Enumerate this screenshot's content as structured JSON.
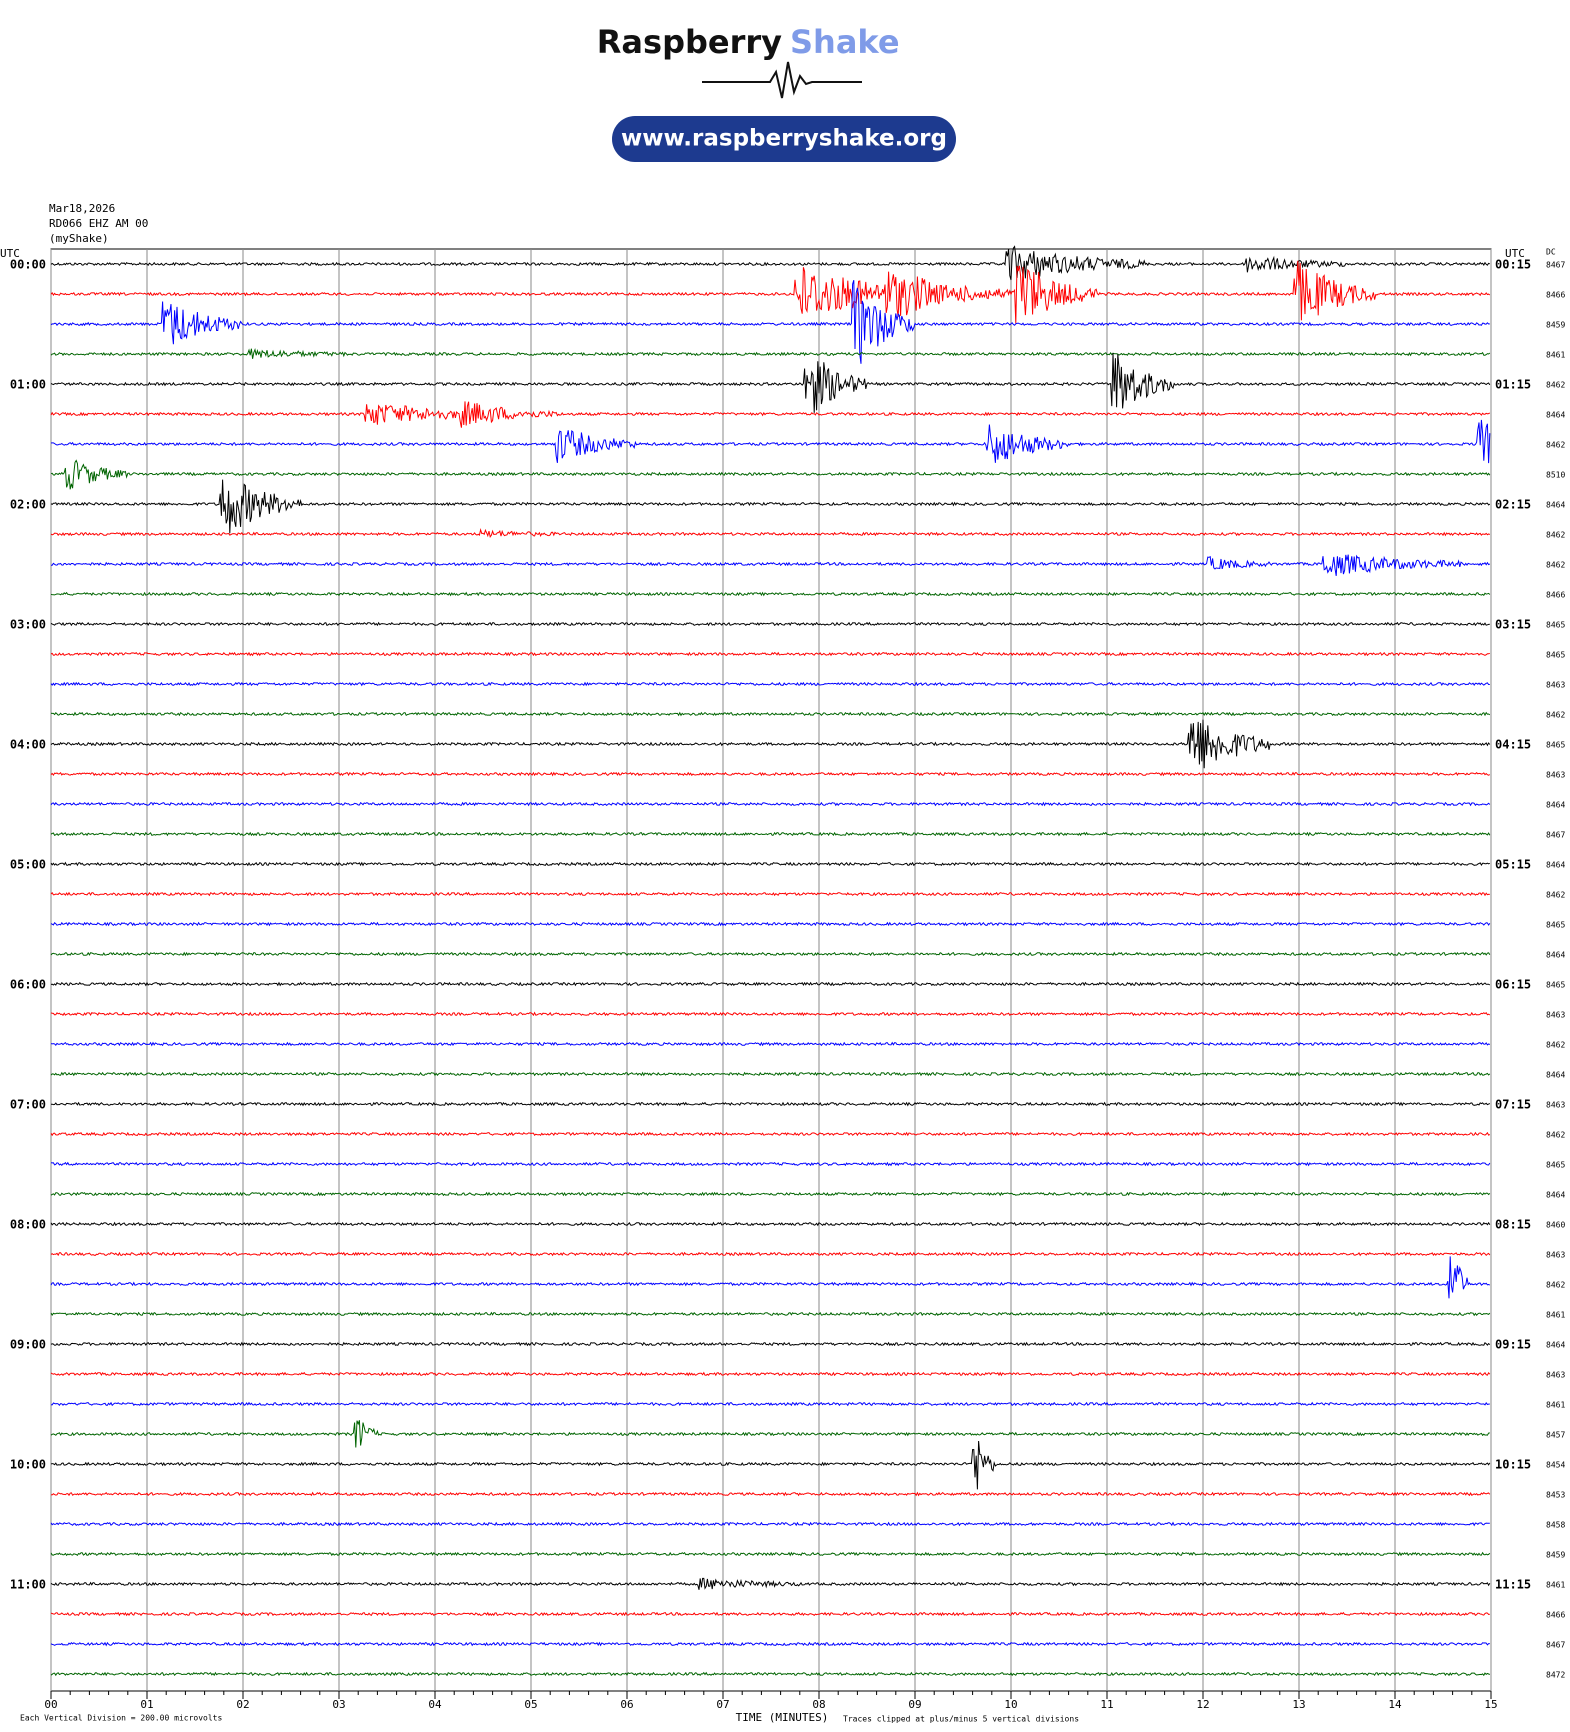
{
  "header": {
    "brand_left": "Raspberry",
    "brand_right": "Shake",
    "url": "www.raspberryshake.org"
  },
  "info": [
    "Mar18,2026",
    "RD066 EHZ AM 00",
    "(myShake)"
  ],
  "plot": {
    "left_zone": "UTC",
    "right_zone": "UTC",
    "dc_label": "DC",
    "left_labels": [
      "00:00",
      "01:00",
      "02:00",
      "03:00",
      "04:00",
      "05:00",
      "06:00",
      "07:00",
      "08:00",
      "09:00",
      "10:00",
      "11:00"
    ],
    "right_labels": [
      "00:15",
      "01:15",
      "02:15",
      "03:15",
      "04:15",
      "05:15",
      "06:15",
      "07:15",
      "08:15",
      "09:15",
      "10:15",
      "11:15"
    ],
    "dc_values": [
      8467,
      8466,
      8459,
      8461,
      8462,
      8464,
      8462,
      8510,
      8464,
      8462,
      8462,
      8466,
      8465,
      8465,
      8463,
      8462,
      8465,
      8463,
      8464,
      8467,
      8464,
      8462,
      8465,
      8464,
      8465,
      8463,
      8462,
      8464,
      8463,
      8462,
      8465,
      8464,
      8460,
      8463,
      8462,
      8461,
      8464,
      8463,
      8461,
      8457,
      8454,
      8453,
      8458,
      8459,
      8461,
      8466,
      8467,
      8472
    ],
    "minute_ticks": [
      "00",
      "01",
      "02",
      "03",
      "04",
      "05",
      "06",
      "07",
      "08",
      "09",
      "10",
      "11",
      "12",
      "13",
      "14",
      "15"
    ],
    "x_label": "TIME (MINUTES)",
    "trace_colors": [
      "#000000",
      "#ff0000",
      "#0000ff",
      "#006400"
    ]
  },
  "footer": {
    "scale": "Each Vertical Division =  200.00 microvolts",
    "clip": "Traces clipped at plus/minus 5 vertical divisions"
  }
}
